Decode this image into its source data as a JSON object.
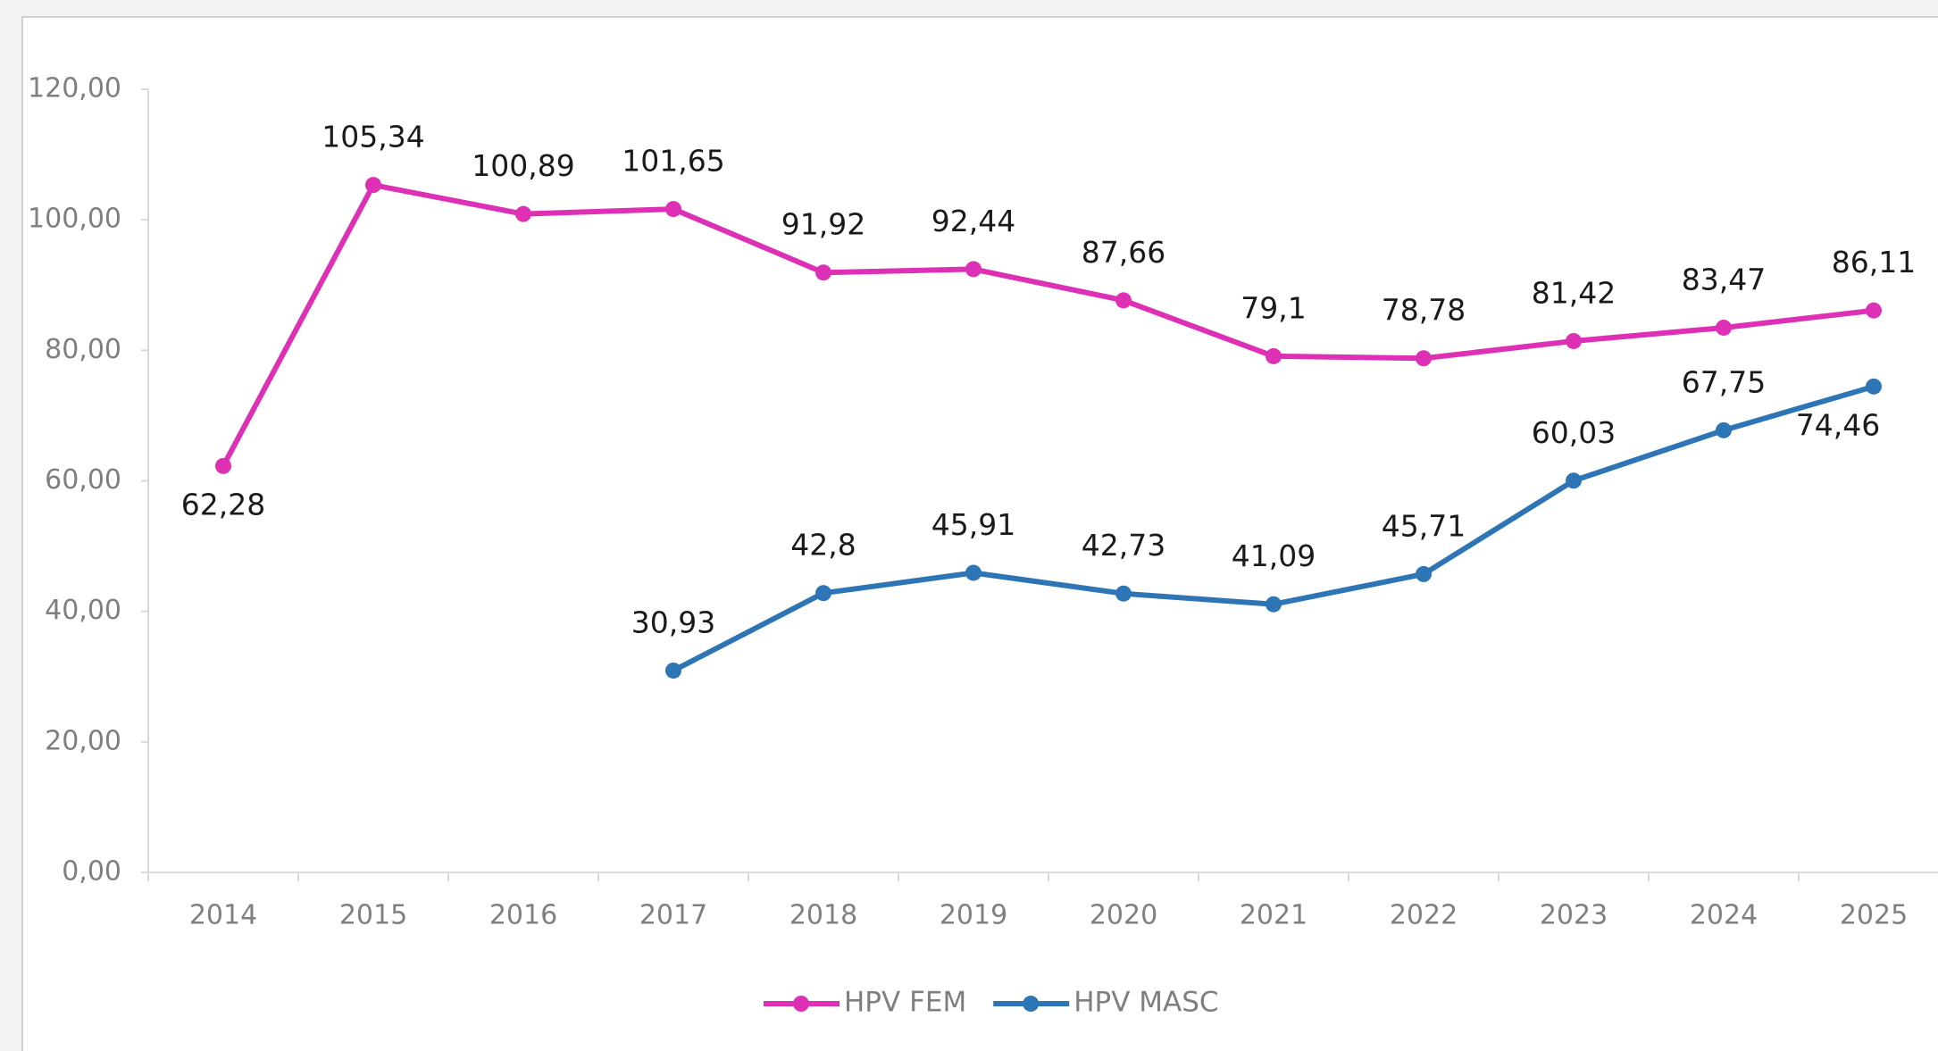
{
  "chart_data": {
    "type": "line",
    "categories": [
      "2014",
      "2015",
      "2016",
      "2017",
      "2018",
      "2019",
      "2020",
      "2021",
      "2022",
      "2023",
      "2024",
      "2025"
    ],
    "series": [
      {
        "name": "HPV FEM",
        "color": "#dd30b4",
        "values": [
          62.28,
          105.34,
          100.89,
          101.65,
          91.92,
          92.44,
          87.66,
          79.1,
          78.78,
          81.42,
          83.47,
          86.11
        ],
        "value_labels": [
          "62,28",
          "105,34",
          "100,89",
          "101,65",
          "91,92",
          "92,44",
          "87,66",
          "79,1",
          "78,78",
          "81,42",
          "83,47",
          "86,11"
        ]
      },
      {
        "name": "HPV MASC",
        "color": "#2e75b6",
        "values": [
          null,
          null,
          null,
          30.93,
          42.8,
          45.91,
          42.73,
          41.09,
          45.71,
          60.03,
          67.75,
          74.46
        ],
        "value_labels": [
          null,
          null,
          null,
          "30,93",
          "42,8",
          "45,91",
          "42,73",
          "41,09",
          "45,71",
          "60,03",
          "67,75",
          "74,46"
        ]
      }
    ],
    "ylim": [
      0,
      120
    ],
    "yticks": [
      {
        "value": 0,
        "label": "0,00"
      },
      {
        "value": 20,
        "label": "20,00"
      },
      {
        "value": 40,
        "label": "40,00"
      },
      {
        "value": 60,
        "label": "60,00"
      },
      {
        "value": 80,
        "label": "80,00"
      },
      {
        "value": 100,
        "label": "100,00"
      },
      {
        "value": 120,
        "label": "120,00"
      }
    ],
    "grid": false,
    "legend": "bottom"
  }
}
